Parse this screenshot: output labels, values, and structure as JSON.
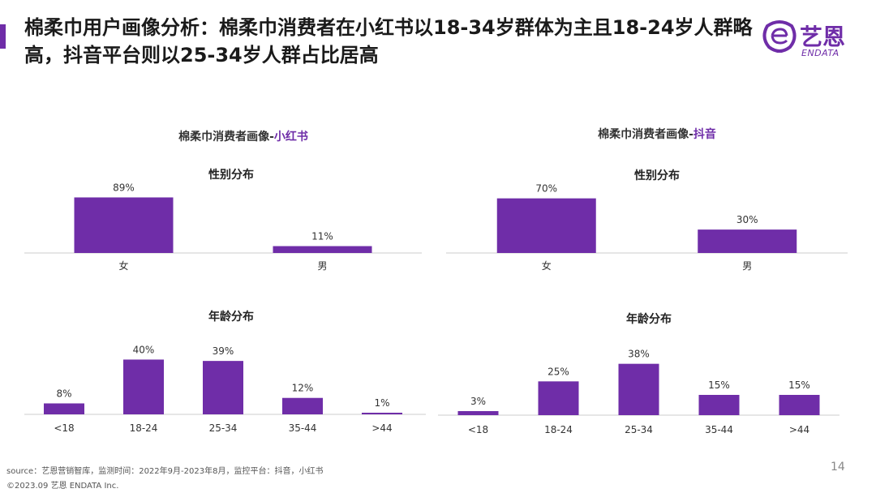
{
  "title": "棉柔巾用户画像分析：棉柔巾消费者在小红书以18-34岁群体为主且18-24岁人群略高，抖音平台则以25-34岁人群占比居高",
  "logo": {
    "name": "艺恩",
    "sub": "ENDATA"
  },
  "colors": {
    "accent": "#6f2da8",
    "bar": "#6f2da8"
  },
  "panels": [
    {
      "title_prefix": "棉柔巾消费者画像-",
      "platform": "小红书"
    },
    {
      "title_prefix": "棉柔巾消费者画像-",
      "platform": "抖音"
    }
  ],
  "chart_data": [
    {
      "type": "bar",
      "panel": "小红书",
      "title": "性别分布",
      "categories": [
        "女",
        "男"
      ],
      "values": [
        89,
        11
      ],
      "labels": [
        "89%",
        "11%"
      ],
      "ylim": [
        0,
        100
      ]
    },
    {
      "type": "bar",
      "panel": "小红书",
      "title": "年龄分布",
      "categories": [
        "<18",
        "18-24",
        "25-34",
        "35-44",
        ">44"
      ],
      "values": [
        8,
        40,
        39,
        12,
        1
      ],
      "labels": [
        "8%",
        "40%",
        "39%",
        "12%",
        "1%"
      ],
      "ylim": [
        0,
        45
      ]
    },
    {
      "type": "bar",
      "panel": "抖音",
      "title": "性别分布",
      "categories": [
        "女",
        "男"
      ],
      "values": [
        70,
        30
      ],
      "labels": [
        "70%",
        "30%"
      ],
      "ylim": [
        0,
        80
      ]
    },
    {
      "type": "bar",
      "panel": "抖音",
      "title": "年龄分布",
      "categories": [
        "<18",
        "18-24",
        "25-34",
        "35-44",
        ">44"
      ],
      "values": [
        3,
        25,
        38,
        15,
        15
      ],
      "labels": [
        "3%",
        "25%",
        "38%",
        "15%",
        "15%"
      ],
      "ylim": [
        0,
        42
      ]
    }
  ],
  "footer": {
    "source": "source：艺恩营销智库，监测时间：2022年9月-2023年8月，监控平台：抖音，小红书",
    "copyright": "©2023.09 艺恩 ENDATA Inc.",
    "page_number": "14"
  }
}
